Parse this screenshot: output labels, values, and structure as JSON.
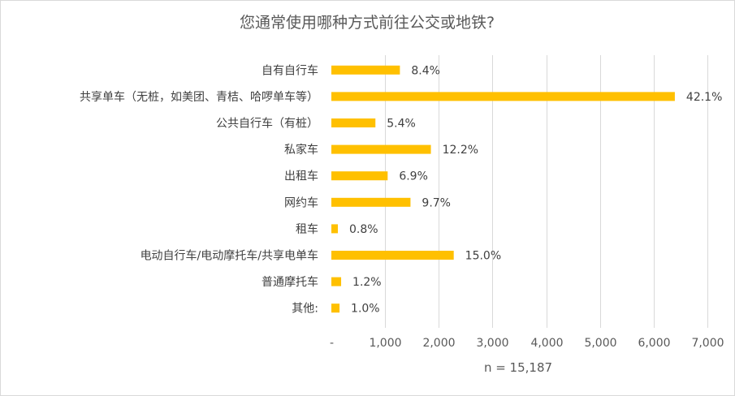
{
  "chart_data": {
    "type": "bar",
    "orientation": "horizontal",
    "title": "您通常使用哪种方式前往公交或地铁?",
    "categories": [
      "自有自行车",
      "共享单车（无桩，如美团、青桔、哈啰单车等）",
      "公共自行车（有桩）",
      "私家车",
      "出租车",
      "网约车",
      "租车",
      "电动自行车/电动摩托车/共享电单车",
      "普通摩托车",
      "其他:"
    ],
    "values": [
      1276,
      6394,
      820,
      1853,
      1048,
      1473,
      121,
      2278,
      182,
      152
    ],
    "data_labels": [
      "8.4%",
      "42.1%",
      "5.4%",
      "12.2%",
      "6.9%",
      "9.7%",
      "0.8%",
      "15.0%",
      "1.2%",
      "1.0%"
    ],
    "xlim": [
      0,
      7000
    ],
    "xticks": [
      0,
      1000,
      2000,
      3000,
      4000,
      5000,
      6000,
      7000
    ],
    "xtick_labels": [
      "-",
      "1,000",
      "2,000",
      "3,000",
      "4,000",
      "5,000",
      "6,000",
      "7,000"
    ],
    "xlabel": "n = 15,187",
    "ylabel": "",
    "bar_color": "#ffc000",
    "grid": true,
    "legend": "none"
  }
}
